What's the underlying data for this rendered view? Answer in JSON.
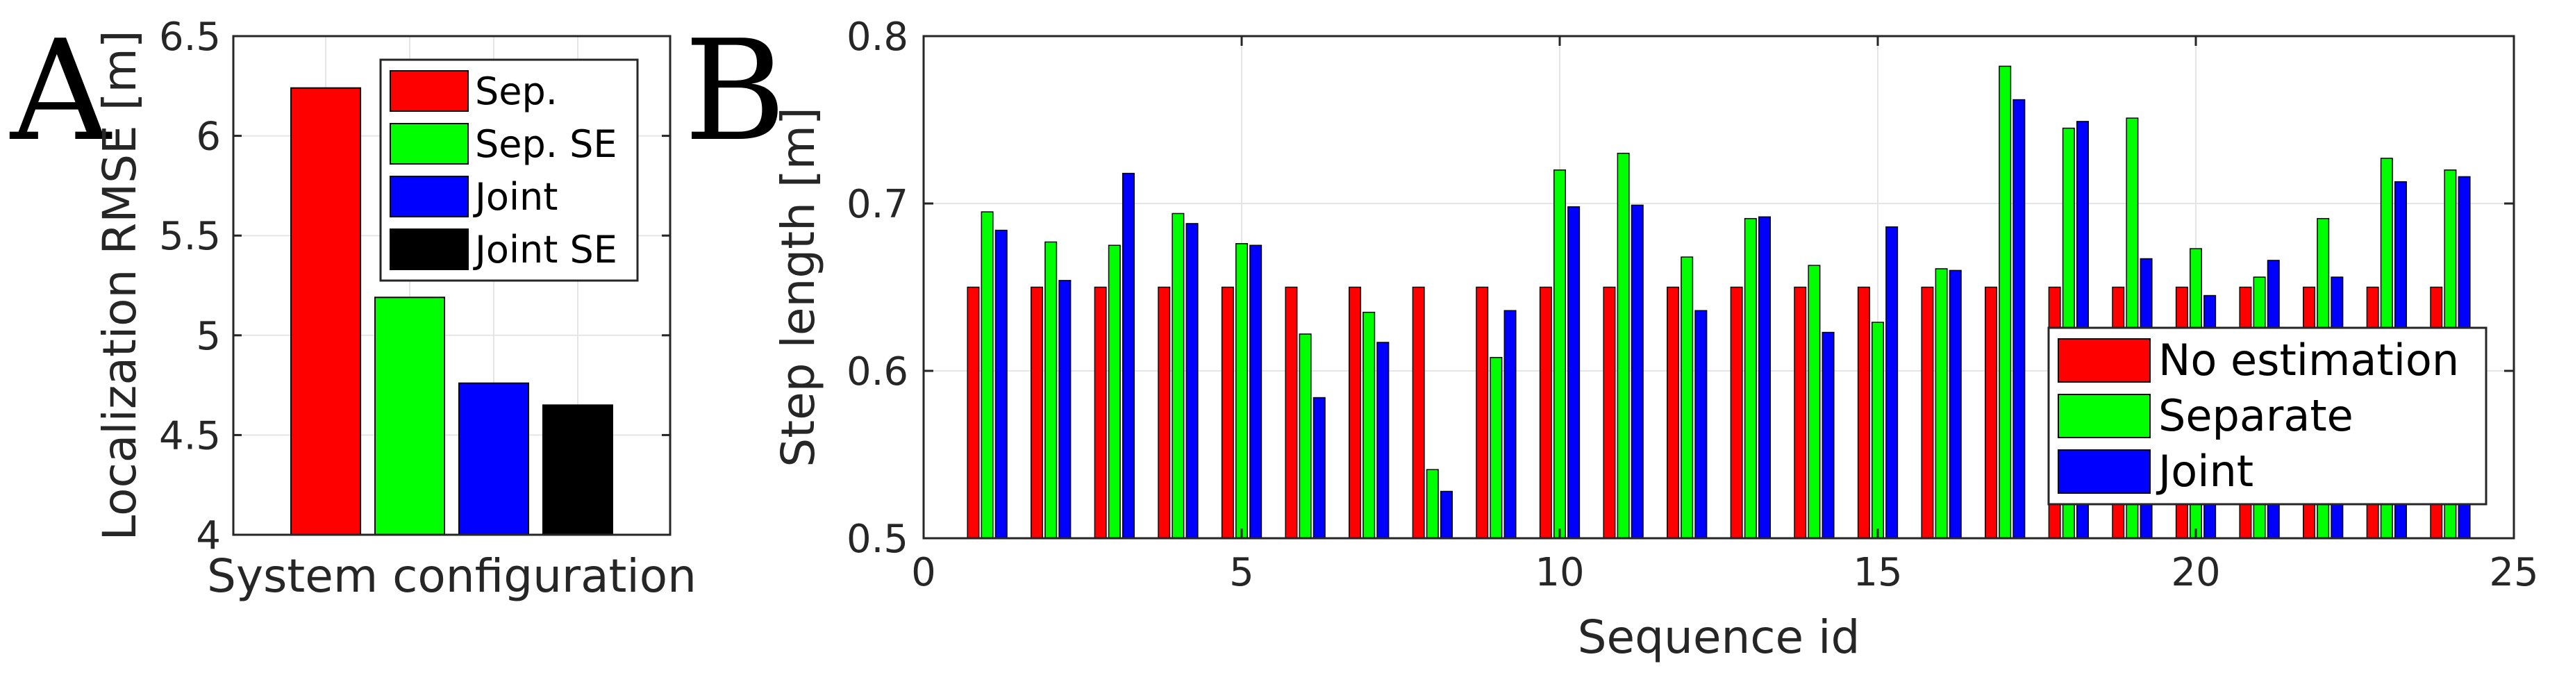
{
  "colors": {
    "red": "#ff0000",
    "green": "#00ff00",
    "blue": "#0000ff",
    "black": "#000000",
    "grid": "#e5e5e5",
    "axis": "#262626"
  },
  "panel_labels": [
    "A",
    "B"
  ],
  "chart_data": [
    {
      "type": "bar",
      "xlabel": "System configuration",
      "ylabel": "Localization RMSE [m]",
      "ylim": [
        4,
        6.5
      ],
      "yticks": [
        "4",
        "4.5",
        "5",
        "5.5",
        "6",
        "6.5"
      ],
      "categories": [
        "Sep.",
        "Sep. SE",
        "Joint",
        "Joint SE"
      ],
      "values": [
        6.24,
        5.19,
        4.76,
        4.65
      ],
      "grid": true,
      "legend": {
        "position": "top-right",
        "entries": [
          "Sep.",
          "Sep. SE",
          "Joint",
          "Joint SE"
        ]
      }
    },
    {
      "type": "bar",
      "xlabel": "Sequence id",
      "ylabel": "Step length [m]",
      "xlim": [
        0,
        25
      ],
      "ylim": [
        0.5,
        0.8
      ],
      "xticks": [
        "0",
        "5",
        "10",
        "15",
        "20",
        "25"
      ],
      "yticks": [
        "0.5",
        "0.6",
        "0.7",
        "0.8"
      ],
      "categories": [
        1,
        2,
        3,
        4,
        5,
        6,
        7,
        8,
        9,
        10,
        11,
        12,
        13,
        14,
        15,
        16,
        17,
        18,
        19,
        20,
        21,
        22,
        23,
        24
      ],
      "series": [
        {
          "name": "No estimation",
          "values": [
            0.65,
            0.65,
            0.65,
            0.65,
            0.65,
            0.65,
            0.65,
            0.65,
            0.65,
            0.65,
            0.65,
            0.65,
            0.65,
            0.65,
            0.65,
            0.65,
            0.65,
            0.65,
            0.65,
            0.65,
            0.65,
            0.65,
            0.65,
            0.65
          ]
        },
        {
          "name": "Separate",
          "values": [
            0.695,
            0.677,
            0.675,
            0.694,
            0.676,
            0.622,
            0.635,
            0.541,
            0.608,
            0.72,
            0.73,
            0.668,
            0.691,
            0.663,
            0.629,
            0.661,
            0.782,
            0.745,
            0.751,
            0.673,
            0.656,
            0.691,
            0.727,
            0.72
          ]
        },
        {
          "name": "Joint",
          "values": [
            0.684,
            0.654,
            0.718,
            0.688,
            0.675,
            0.584,
            0.617,
            0.528,
            0.636,
            0.698,
            0.699,
            0.636,
            0.692,
            0.623,
            0.686,
            0.66,
            0.762,
            0.749,
            0.667,
            0.645,
            0.666,
            0.656,
            0.713,
            0.716
          ]
        }
      ],
      "grid": true,
      "legend": {
        "position": "bottom-right",
        "entries": [
          "No estimation",
          "Separate",
          "Joint"
        ]
      }
    }
  ]
}
